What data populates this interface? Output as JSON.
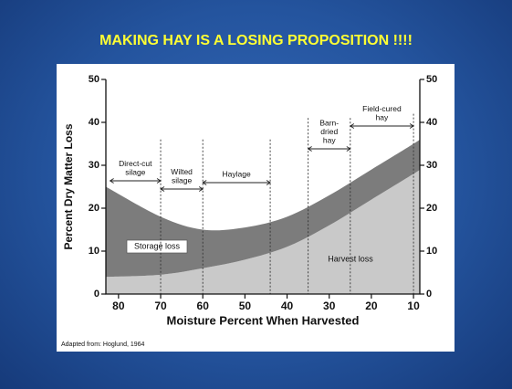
{
  "slide_title": "MAKING HAY IS A LOSING PROPOSITION !!!!",
  "chart_data": {
    "type": "stacked-area",
    "xlabel": "Moisture Percent When Harvested",
    "ylabel": "Percent Dry Matter Loss",
    "source": "Adapted from: Hoglund, 1964",
    "x": [
      83,
      70,
      60,
      50,
      40,
      30,
      20,
      10,
      8.5
    ],
    "series": [
      {
        "name": "Harvest loss",
        "color": "#c9c9c9",
        "values": [
          4,
          4.5,
          6,
          8,
          11,
          16,
          22,
          28,
          29
        ]
      },
      {
        "name": "Storage loss",
        "color": "#7c7c7c",
        "values": [
          21,
          13.5,
          9,
          7.5,
          7,
          7,
          7,
          7,
          7
        ]
      }
    ],
    "xlim": [
      83,
      8.5
    ],
    "xticks": [
      80,
      70,
      60,
      50,
      40,
      30,
      20,
      10
    ],
    "ylim": [
      0,
      50
    ],
    "yticks": [
      0,
      10,
      20,
      30,
      40,
      50
    ],
    "y2lim": [
      0,
      50
    ],
    "y2ticks": [
      0,
      10,
      20,
      30,
      40,
      50
    ],
    "dividers": [
      70,
      60,
      44,
      35,
      25,
      10
    ],
    "annotations": [
      {
        "lines": [
          "Direct-cut",
          "silage"
        ],
        "range": [
          82,
          70
        ]
      },
      {
        "lines": [
          "Wilted",
          "silage"
        ],
        "range": [
          70,
          60
        ]
      },
      {
        "lines": [
          "Haylage"
        ],
        "range": [
          60,
          44
        ]
      },
      {
        "lines": [
          "Barn-",
          "dried",
          "hay"
        ],
        "range": [
          35,
          25
        ]
      },
      {
        "lines": [
          "Field-cured",
          "hay"
        ],
        "range": [
          25,
          10
        ]
      }
    ]
  }
}
